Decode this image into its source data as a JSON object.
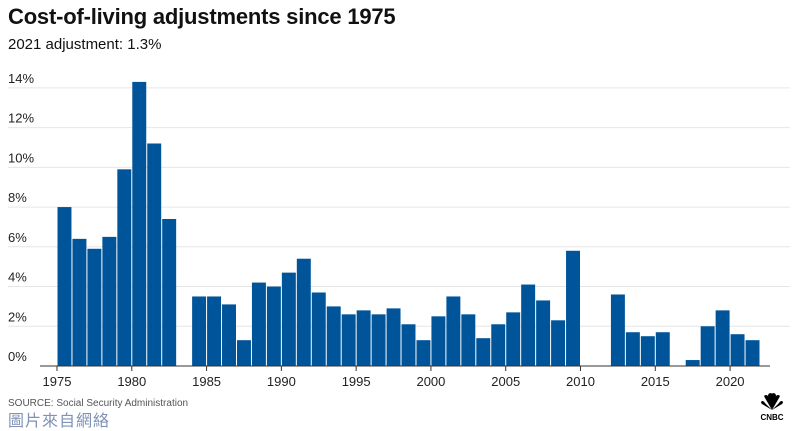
{
  "header": {
    "title": "Cost-of-living adjustments since 1975",
    "subtitle": "2021 adjustment: 1.3%"
  },
  "footer": {
    "source": "SOURCE: Social Security Administration",
    "watermark": "圖片來自網絡",
    "logo_text": "CNBC",
    "logo_icon": "peacock-icon"
  },
  "colors": {
    "bar": "#00549a",
    "grid": "#e6e6e6",
    "axis": "#333333"
  },
  "chart_data": {
    "type": "bar",
    "title": "Cost-of-living adjustments since 1975",
    "subtitle": "2021 adjustment: 1.3%",
    "xlabel": "",
    "ylabel": "",
    "x": [
      1975,
      1976,
      1977,
      1978,
      1979,
      1980,
      1981,
      1982,
      1983,
      1984,
      1985,
      1986,
      1987,
      1988,
      1989,
      1990,
      1991,
      1992,
      1993,
      1994,
      1995,
      1996,
      1997,
      1998,
      1999,
      2000,
      2001,
      2002,
      2003,
      2004,
      2005,
      2006,
      2007,
      2008,
      2009,
      2010,
      2011,
      2012,
      2013,
      2014,
      2015,
      2016,
      2017,
      2018,
      2019,
      2020,
      2021
    ],
    "values": [
      8.0,
      6.4,
      5.9,
      6.5,
      9.9,
      14.3,
      11.2,
      7.4,
      0,
      3.5,
      3.5,
      3.1,
      1.3,
      4.2,
      4.0,
      4.7,
      5.4,
      3.7,
      3.0,
      2.6,
      2.8,
      2.6,
      2.9,
      2.1,
      1.3,
      2.5,
      3.5,
      2.6,
      1.4,
      2.1,
      2.7,
      4.1,
      3.3,
      2.3,
      5.8,
      0,
      0,
      3.6,
      1.7,
      1.5,
      1.7,
      0,
      0.3,
      2.0,
      2.8,
      1.6,
      1.3
    ],
    "ylim": [
      0,
      15
    ],
    "yticks": [
      "0%",
      "2%",
      "4%",
      "6%",
      "8%",
      "10%",
      "12%",
      "14%"
    ],
    "ytick_values": [
      0,
      2,
      4,
      6,
      8,
      10,
      12,
      14
    ],
    "xticks": [
      "1975",
      "1980",
      "1985",
      "1990",
      "1995",
      "2000",
      "2005",
      "2010",
      "2015",
      "2020"
    ],
    "xtick_values": [
      1975,
      1980,
      1985,
      1990,
      1995,
      2000,
      2005,
      2010,
      2015,
      2020
    ],
    "grid": true,
    "legend": "none"
  }
}
